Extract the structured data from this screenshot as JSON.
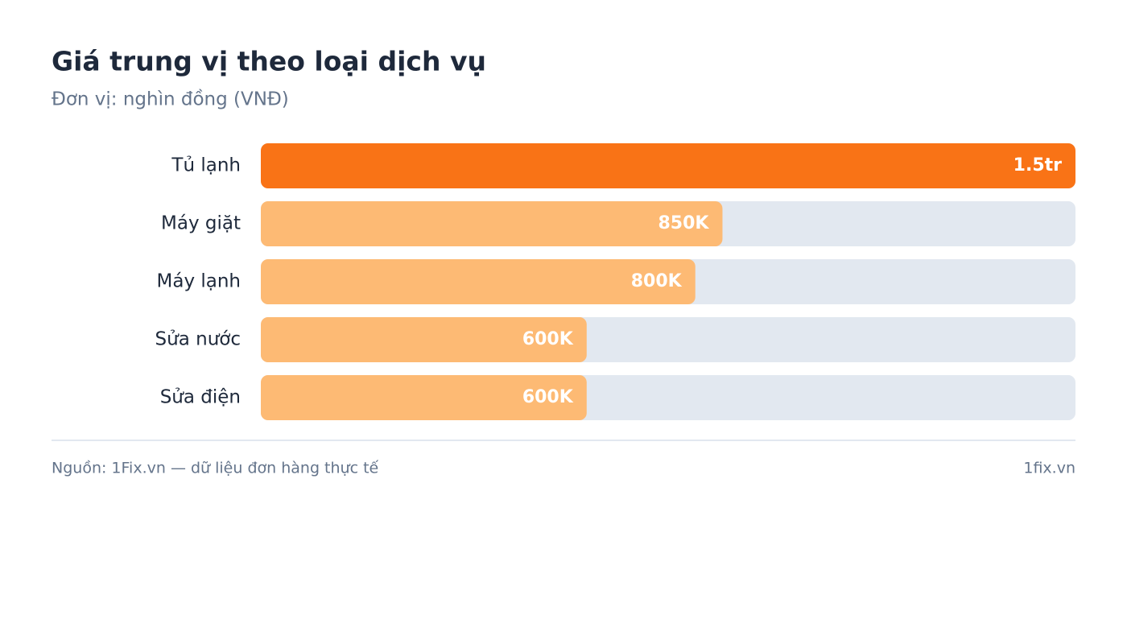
{
  "chart_data": {
    "type": "bar",
    "orientation": "horizontal",
    "title": "Giá trung vị theo loại dịch vụ",
    "subtitle": "Đơn vị: nghìn đồng (VNĐ)",
    "categories": [
      "Tủ lạnh",
      "Máy giặt",
      "Máy lạnh",
      "Sửa nước",
      "Sửa điện"
    ],
    "values": [
      1500,
      850,
      800,
      600,
      600
    ],
    "value_labels": [
      "1.5tr",
      "850K",
      "800K",
      "600K",
      "600K"
    ],
    "colors": [
      "#f97316",
      "#fdba74",
      "#fdba74",
      "#fdba74",
      "#fdba74"
    ],
    "xlim": [
      0,
      1500
    ],
    "source": "Nguồn: 1Fix.vn — dữ liệu đơn hàng thực tế",
    "brand": "1fix.vn"
  }
}
